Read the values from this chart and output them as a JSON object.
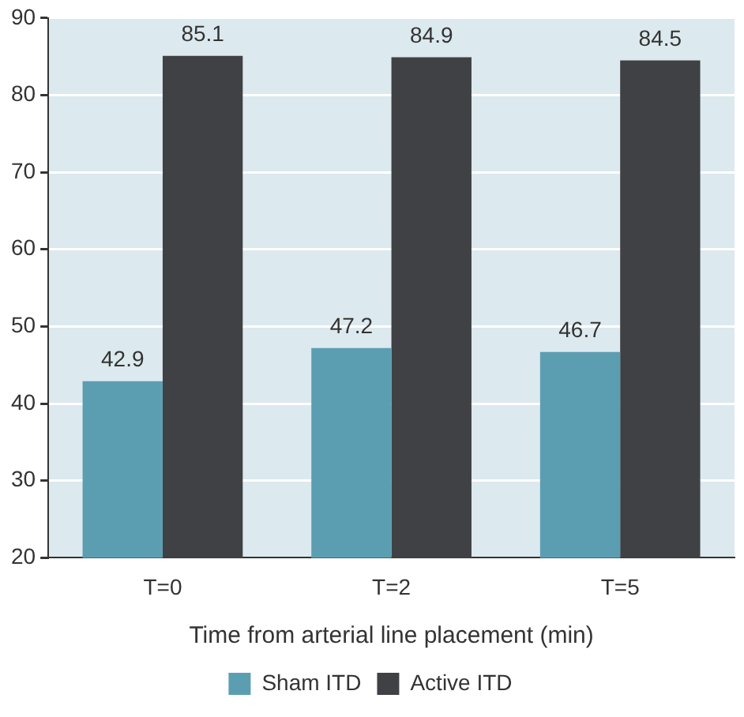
{
  "chart_data": {
    "type": "bar",
    "xlabel": "Time from arterial line placement (min)",
    "categories": [
      "T=0",
      "T=2",
      "T=5"
    ],
    "series": [
      {
        "name": "Sham ITD",
        "color": "#5b9eb1",
        "values": [
          42.9,
          47.2,
          46.7
        ]
      },
      {
        "name": "Active ITD",
        "color": "#404145",
        "values": [
          85.1,
          84.9,
          84.5
        ]
      }
    ],
    "ylim": [
      20,
      90
    ],
    "yticks": [
      20,
      30,
      40,
      50,
      60,
      70,
      80,
      90
    ],
    "grid": "y",
    "legend": "bottom",
    "data_labels": true
  }
}
